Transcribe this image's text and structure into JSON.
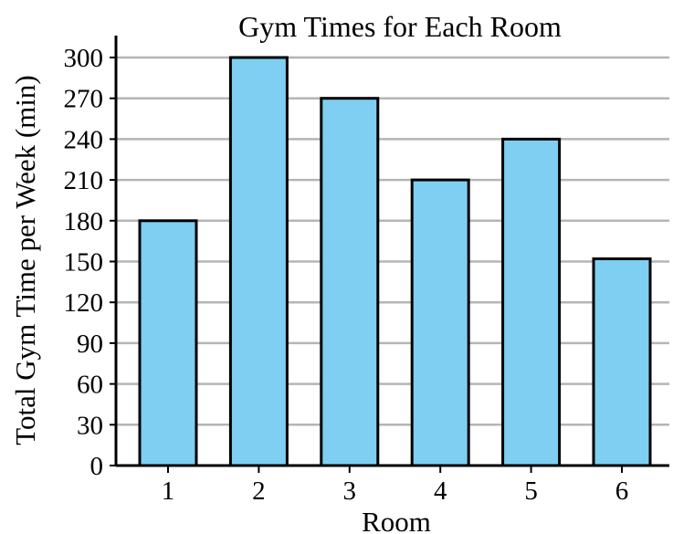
{
  "chart_data": {
    "type": "bar",
    "title": "Gym Times for Each Room",
    "xlabel": "Room",
    "ylabel": "Total Gym Time per Week (min)",
    "categories": [
      "1",
      "2",
      "3",
      "4",
      "5",
      "6"
    ],
    "values": [
      180,
      300,
      270,
      210,
      240,
      152
    ],
    "ylim": [
      0,
      300
    ],
    "yticks": [
      0,
      30,
      60,
      90,
      120,
      150,
      180,
      210,
      240,
      270,
      300
    ],
    "grid": true,
    "bar_color": "#7ecff2"
  }
}
